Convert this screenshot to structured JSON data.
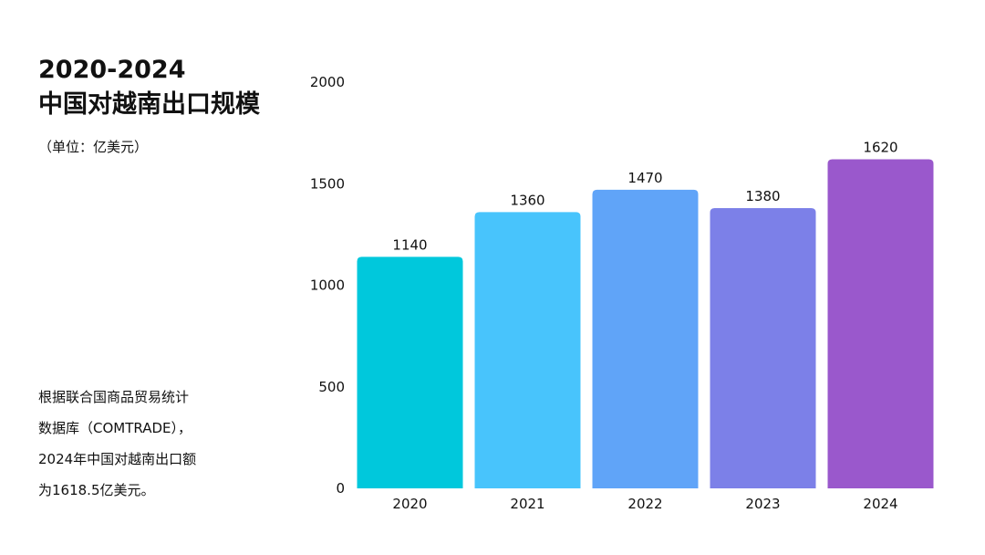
{
  "heading": {
    "line1": "2020-2024",
    "line2": "中国对越南出口规模"
  },
  "unit_label": "（单位：亿美元）",
  "note_lines": [
    "根据联合国商品贸易统计",
    "数据库（COMTRADE），",
    "2024年中国对越南出口额",
    "为1618.5亿美元。"
  ],
  "chart_data": {
    "type": "bar",
    "categories": [
      "2020",
      "2021",
      "2022",
      "2023",
      "2024"
    ],
    "values": [
      1140,
      1360,
      1470,
      1380,
      1620
    ],
    "data_labels": [
      "1140",
      "1360",
      "1470",
      "1380",
      "1620"
    ],
    "y_ticks": [
      "0",
      "500",
      "1000",
      "1500",
      "2000"
    ],
    "ylim": [
      0,
      2000
    ],
    "grid": false,
    "colors": [
      "#00C8DC",
      "#48C4FC",
      "#60A4F8",
      "#7C80E8",
      "#9A58CC"
    ]
  }
}
